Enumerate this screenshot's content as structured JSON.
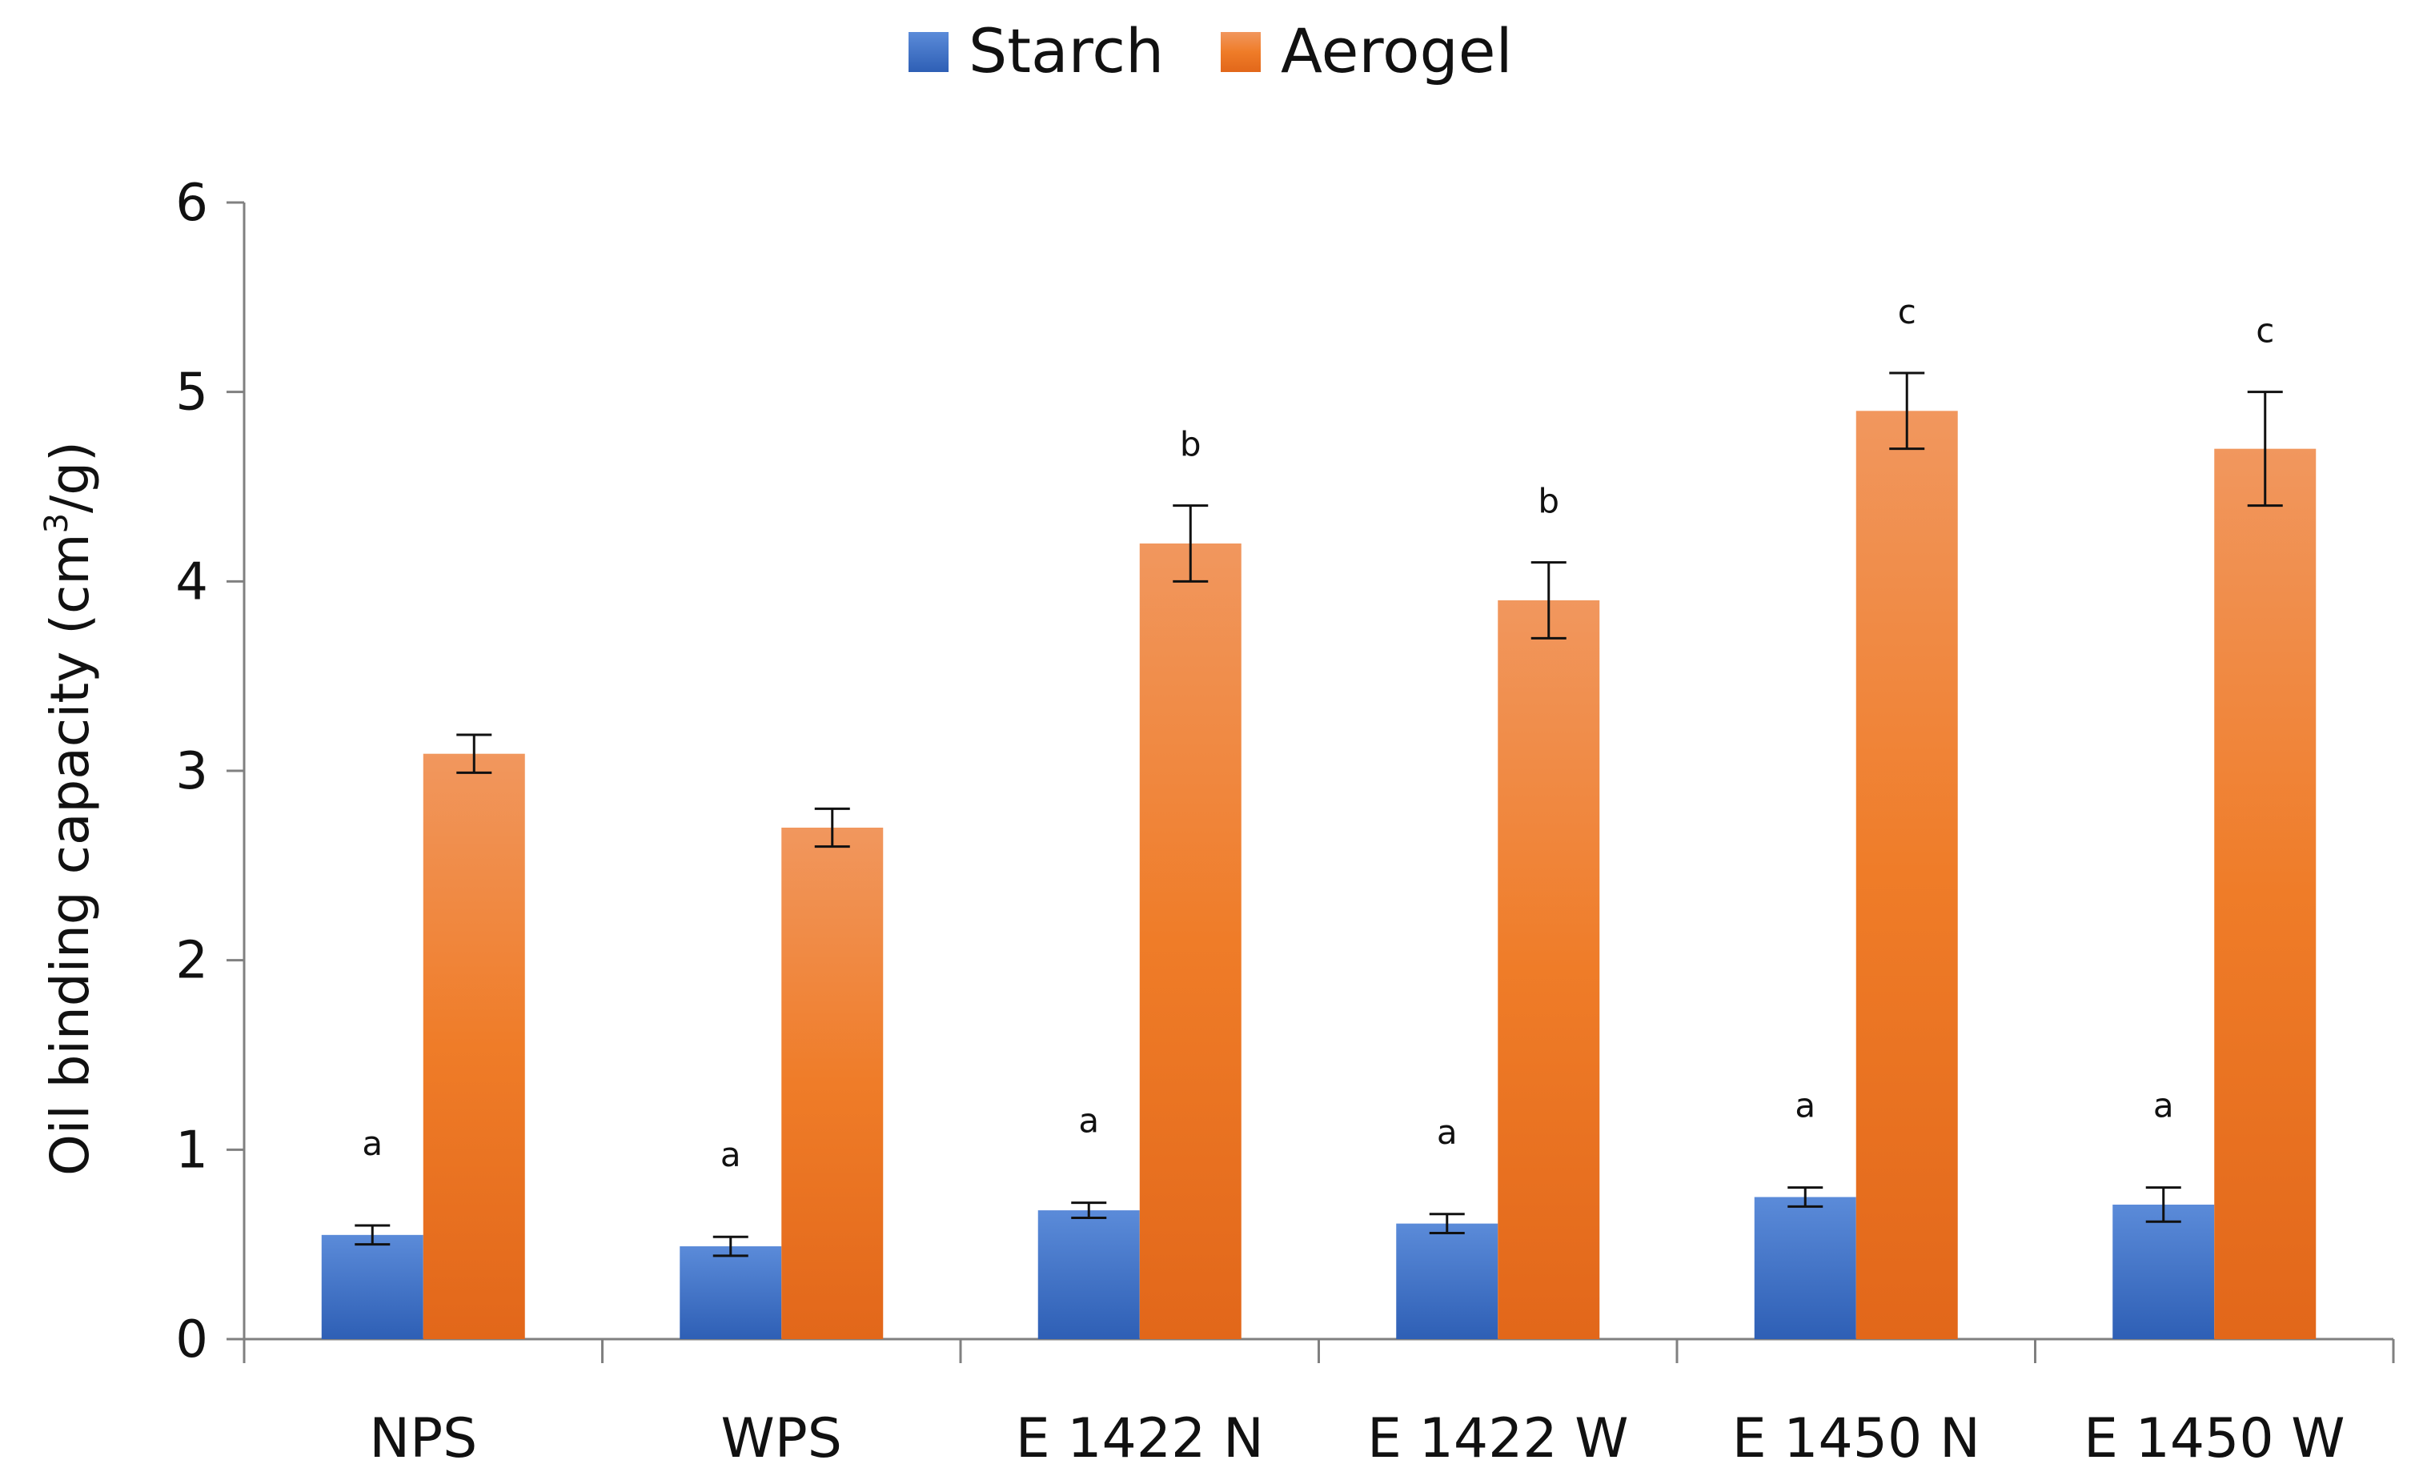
{
  "chart_data": {
    "type": "bar",
    "title": "",
    "xlabel": "",
    "ylabel": "Oil binding capacity (cm",
    "ylabel_sup": "3",
    "ylabel_tail": "/g)",
    "ylim": [
      0,
      6
    ],
    "yticks": [
      "0",
      "1",
      "2",
      "3",
      "4",
      "5",
      "6"
    ],
    "categories": [
      "NPS",
      "WPS",
      "E 1422 N",
      "E 1422 W",
      "E 1450 N",
      "E 1450 W"
    ],
    "legend_position": "top-center",
    "series": [
      {
        "name": "Starch",
        "color": "#4472C4",
        "values": [
          0.55,
          0.49,
          0.68,
          0.61,
          0.75,
          0.71
        ],
        "errors": [
          0.05,
          0.05,
          0.04,
          0.05,
          0.05,
          0.09
        ],
        "significance": [
          "a",
          "a",
          "a",
          "a",
          "a",
          "a"
        ]
      },
      {
        "name": "Aerogel",
        "color": "#ED7D31",
        "values": [
          3.09,
          2.7,
          4.2,
          3.9,
          4.9,
          4.7
        ],
        "errors": [
          0.1,
          0.1,
          0.2,
          0.2,
          0.2,
          0.3
        ],
        "significance": [
          "",
          "",
          "b",
          "b",
          "c",
          "c"
        ]
      }
    ]
  }
}
